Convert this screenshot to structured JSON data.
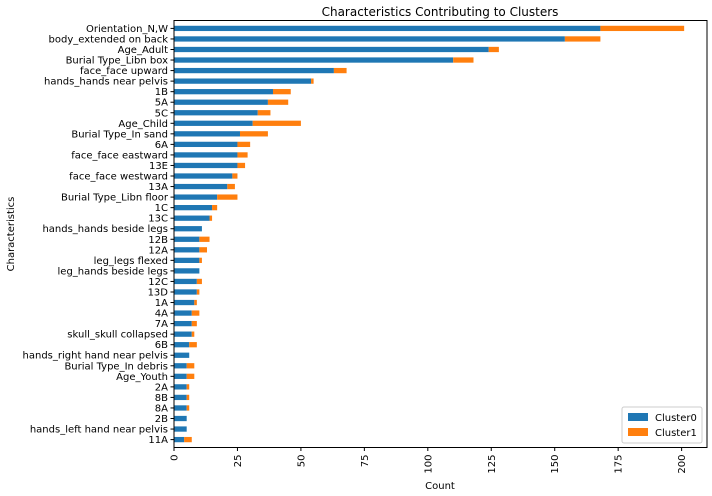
{
  "chart_data": {
    "type": "bar",
    "orientation": "horizontal",
    "stacked": true,
    "title": "Characteristics Contributing to Clusters",
    "xlabel": "Count",
    "ylabel": "Characteristics",
    "xlim": [
      0,
      210
    ],
    "xticks": [
      0,
      25,
      50,
      75,
      100,
      125,
      150,
      175,
      200
    ],
    "grid": false,
    "legend_position": "bottom-right",
    "categories": [
      "Orientation_N,W",
      "body_extended on back",
      "Age_Adult",
      "Burial Type_Libn box",
      "face_face upward",
      "hands_hands near pelvis",
      "1B",
      "5A",
      "5C",
      "Age_Child",
      "Burial Type_In sand",
      "6A",
      "face_face eastward",
      "13E",
      "face_face westward",
      "13A",
      "Burial Type_Libn floor",
      "1C",
      "13C",
      "hands_hands beside legs",
      "12B",
      "12A",
      "leg_legs flexed",
      "leg_hands beside legs",
      "12C",
      "13D",
      "1A",
      "4A",
      "7A",
      "skull_skull collapsed",
      "6B",
      "hands_right hand near pelvis",
      "Burial Type_In debris",
      "Age_Youth",
      "2A",
      "8B",
      "8A",
      "2B",
      "hands_left hand near pelvis",
      "11A"
    ],
    "series": [
      {
        "name": "Cluster0",
        "color": "#1f77b4",
        "values": [
          168,
          154,
          124,
          110,
          63,
          54,
          39,
          37,
          33,
          31,
          26,
          25,
          25,
          25,
          23,
          21,
          17,
          15,
          14,
          11,
          10,
          10,
          10,
          10,
          9,
          9,
          8,
          7,
          7,
          7,
          6,
          6,
          5,
          5,
          5,
          5,
          5,
          5,
          5,
          4
        ]
      },
      {
        "name": "Cluster1",
        "color": "#ff7f0e",
        "values": [
          33,
          14,
          4,
          8,
          5,
          1,
          7,
          8,
          5,
          19,
          11,
          5,
          4,
          3,
          2,
          3,
          8,
          2,
          1,
          0,
          4,
          3,
          1,
          0,
          2,
          1,
          1,
          3,
          2,
          1,
          3,
          0,
          3,
          3,
          1,
          1,
          1,
          0,
          0,
          3
        ]
      }
    ]
  }
}
